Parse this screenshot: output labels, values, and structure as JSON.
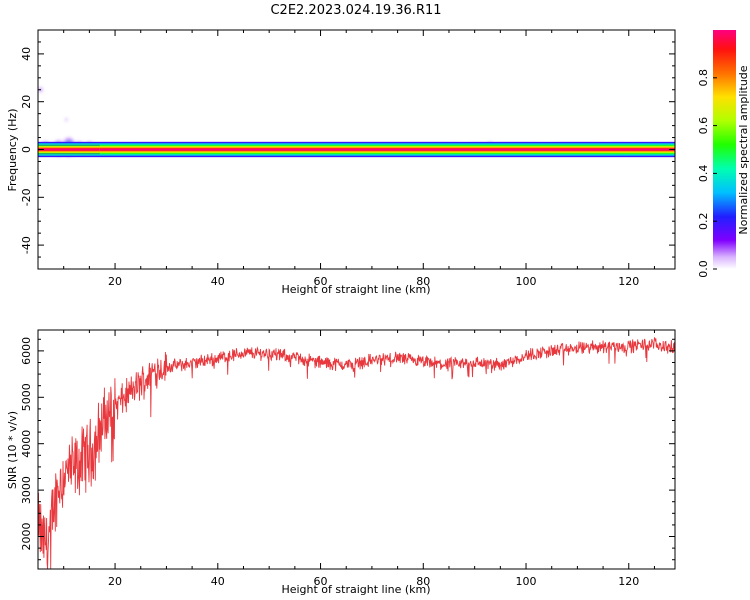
{
  "title": "C2E2.2023.024.19.36.R11",
  "chart_data": [
    {
      "type": "heatmap",
      "xlabel": "Height of straight line (km)",
      "ylabel": "Frequency (Hz)",
      "xlim": [
        5,
        129
      ],
      "ylim": [
        -50,
        50
      ],
      "xticks": [
        20,
        40,
        60,
        80,
        100,
        120
      ],
      "yticks": [
        -40,
        -20,
        0,
        20,
        40
      ],
      "description_note": "",
      "colorbar": {
        "label": "Normalized spectral amplitude",
        "range": [
          0,
          1
        ],
        "ticks": [
          0.0,
          0.2,
          0.4,
          0.6,
          0.8
        ]
      },
      "main_band": {
        "freq_center": 0,
        "normalized_amplitude": 1.0
      },
      "blobs": [
        {
          "x": 6.5,
          "y": 0.5,
          "amp": 0.45,
          "sx": 1.2,
          "sy": 3.0
        },
        {
          "x": 9.0,
          "y": 0.5,
          "amp": 0.5,
          "sx": 1.2,
          "sy": 3.5
        },
        {
          "x": 11.0,
          "y": 1.0,
          "amp": 0.55,
          "sx": 1.3,
          "sy": 4.0
        },
        {
          "x": 13.0,
          "y": 0.5,
          "amp": 0.45,
          "sx": 1.2,
          "sy": 3.0
        },
        {
          "x": 15.0,
          "y": 0.5,
          "amp": 0.4,
          "sx": 1.0,
          "sy": 3.0
        },
        {
          "x": 17.0,
          "y": 0.0,
          "amp": 0.2,
          "sx": 1.2,
          "sy": 2.0
        },
        {
          "x": 22.0,
          "y": 0.5,
          "amp": 0.12,
          "sx": 1.0,
          "sy": 1.5
        },
        {
          "x": 88.0,
          "y": 0.5,
          "amp": 0.12,
          "sx": 2.0,
          "sy": 2.0
        },
        {
          "x": 93.0,
          "y": 1.0,
          "amp": 0.2,
          "sx": 1.0,
          "sy": 2.5
        },
        {
          "x": 104.0,
          "y": 0.5,
          "amp": 0.15,
          "sx": 3.0,
          "sy": 2.0
        },
        {
          "x": 118.0,
          "y": 0.5,
          "amp": 0.15,
          "sx": 4.0,
          "sy": 2.5
        },
        {
          "x": 125.0,
          "y": 0.5,
          "amp": 0.15,
          "sx": 3.0,
          "sy": 2.5
        },
        {
          "x": 5.5,
          "y": 25.0,
          "amp": 0.1,
          "sx": 0.5,
          "sy": 1.5
        },
        {
          "x": 10.5,
          "y": 12.5,
          "amp": 0.08,
          "sx": 0.3,
          "sy": 1.0
        }
      ]
    },
    {
      "type": "line",
      "xlabel": "Height of straight line (km)",
      "ylabel": "SNR (10 * v/v)",
      "xlim": [
        5,
        129
      ],
      "ylim": [
        1300,
        6450
      ],
      "xticks": [
        20,
        40,
        60,
        80,
        100,
        120
      ],
      "yticks": [
        2000,
        3000,
        4000,
        5000,
        6000
      ],
      "color": "#e8383d",
      "series": [
        {
          "x": [
            5,
            6,
            7,
            8,
            9,
            10,
            11,
            12,
            13,
            14,
            15,
            16,
            17,
            18,
            19,
            20,
            22,
            24,
            26,
            28,
            30,
            33,
            36,
            40,
            45,
            50,
            55,
            60,
            65,
            70,
            75,
            80,
            85,
            90,
            95,
            100,
            105,
            110,
            115,
            120,
            125,
            129
          ],
          "values": [
            2300,
            1900,
            1900,
            2600,
            3100,
            3300,
            3400,
            3450,
            3550,
            3700,
            3800,
            3900,
            4300,
            4500,
            4700,
            4800,
            5000,
            5200,
            5400,
            5600,
            5650,
            5700,
            5750,
            5850,
            5950,
            5950,
            5850,
            5750,
            5700,
            5800,
            5850,
            5750,
            5700,
            5750,
            5700,
            5900,
            6000,
            6050,
            6100,
            6100,
            6150,
            6050
          ]
        }
      ],
      "noise_amplitude": 120
    }
  ]
}
